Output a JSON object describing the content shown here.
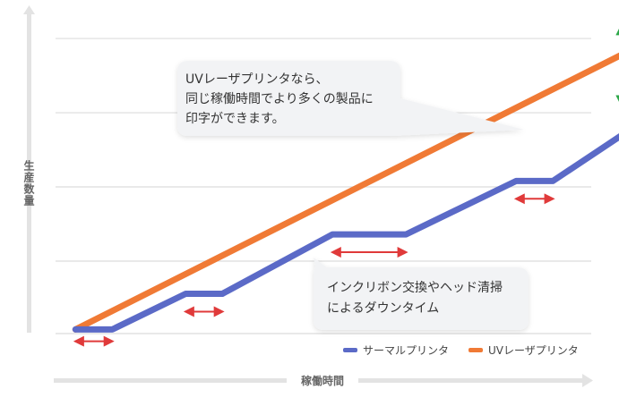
{
  "chart_data": {
    "type": "line",
    "title": "",
    "xlabel": "稼働時間",
    "ylabel": "生産数量",
    "xlim": [
      0,
      100
    ],
    "ylim": [
      0,
      100
    ],
    "grid": true,
    "legend_position": "bottom-right",
    "series": [
      {
        "name": "サーマルプリンタ",
        "color": "#5b6ac7",
        "points": [
          [
            5,
            2
          ],
          [
            12,
            2
          ],
          [
            26,
            14
          ],
          [
            33,
            14
          ],
          [
            54,
            34
          ],
          [
            68,
            34
          ],
          [
            89,
            52
          ],
          [
            96,
            52
          ],
          [
            113,
            72
          ]
        ]
      },
      {
        "name": "UVレーザプリンタ",
        "color": "#f07a35",
        "points": [
          [
            5,
            2
          ],
          [
            113,
            98
          ]
        ]
      }
    ],
    "downtime_markers": [
      {
        "x0": 5,
        "x1": 12,
        "y": -2
      },
      {
        "x0": 26,
        "x1": 33,
        "y": 8
      },
      {
        "x0": 54,
        "x1": 68,
        "y": 28
      },
      {
        "x0": 89,
        "x1": 96,
        "y": 46
      }
    ],
    "gap_marker": {
      "x": 109,
      "y0": 78,
      "y1": 104
    },
    "annotations": [
      {
        "id": "uv",
        "lines": [
          "UVレーザプリンタなら、",
          "同じ稼働時間でより多くの製品に",
          "印字ができます。"
        ]
      },
      {
        "id": "downtime",
        "lines": [
          "インクリボン交換やヘッド清掃",
          "によるダウンタイム"
        ]
      }
    ]
  },
  "colors": {
    "grid": "#dcdcdc",
    "axis_arrow": "#e3e3e3",
    "downtime_arrow": "#e03a3a",
    "gap_arrow": "#2ea84a",
    "callout_bg": "#f2f3f5"
  }
}
